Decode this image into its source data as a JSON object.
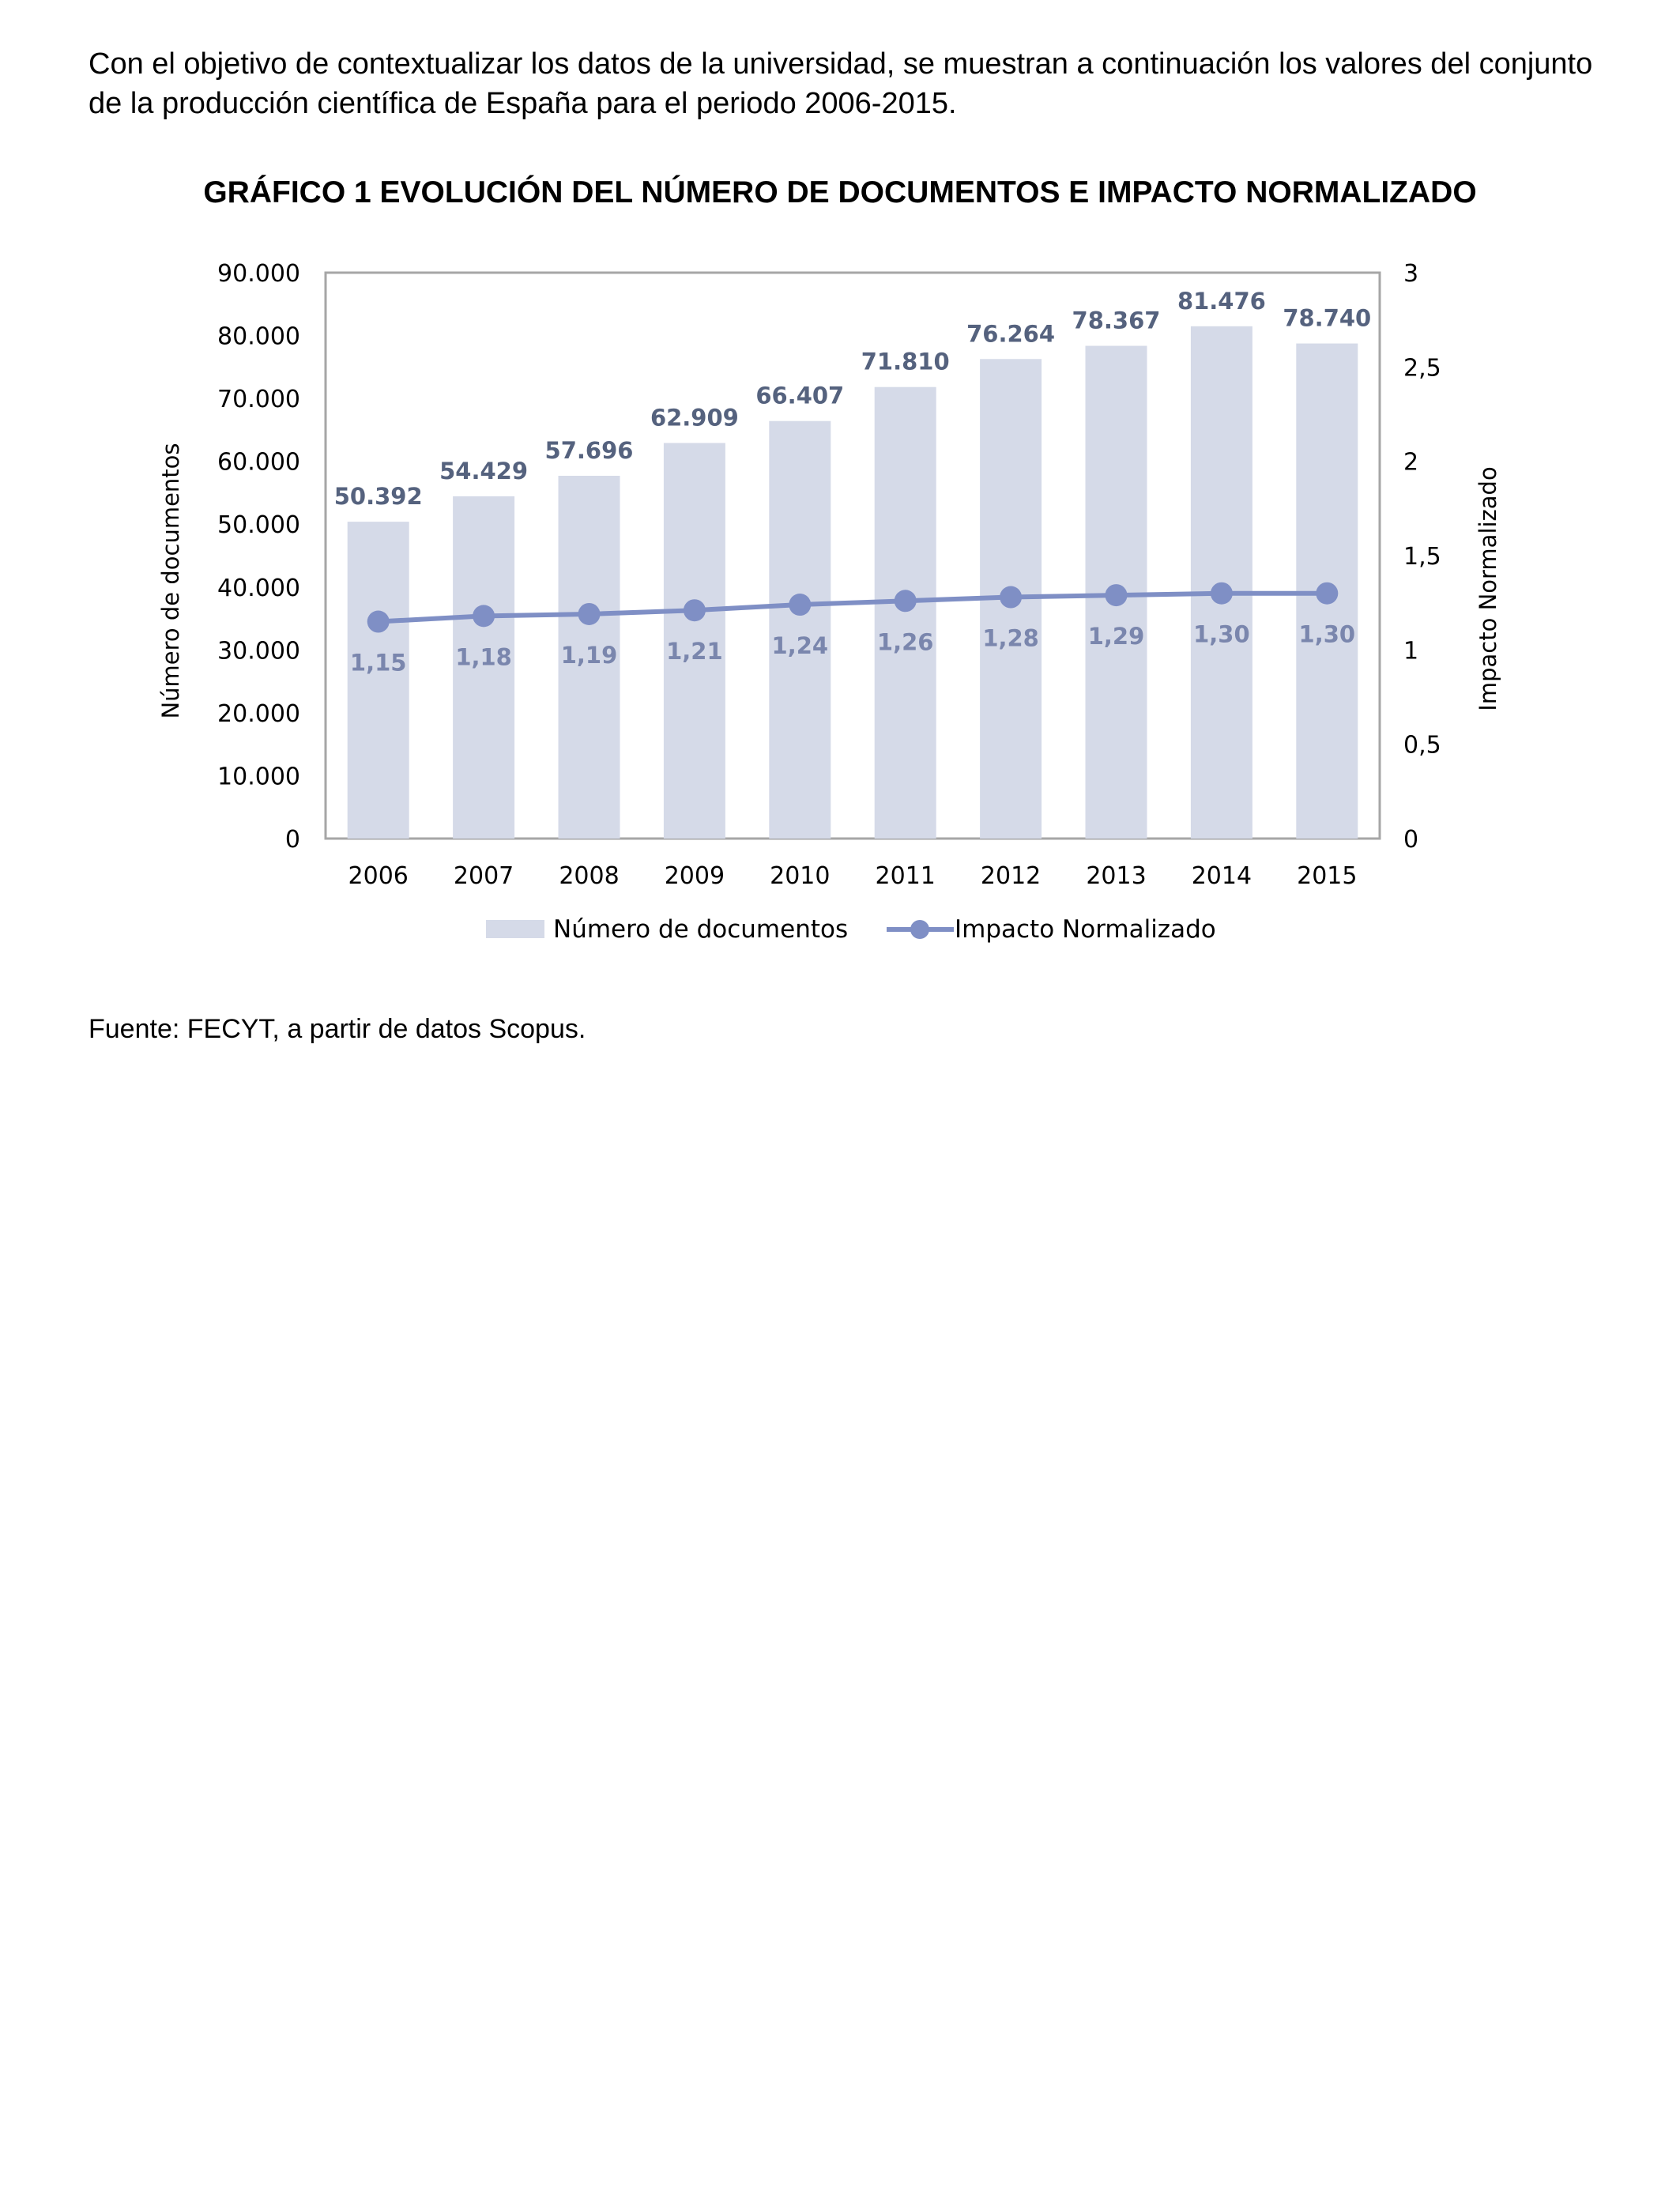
{
  "intro_text": "Con el objetivo de contextualizar los datos de la universidad, se muestran a continuación los valores del conjunto de la producción científica de España para el periodo 2006-2015.",
  "chart_heading": "GRÁFICO 1 EVOLUCIÓN DEL NÚMERO DE DOCUMENTOS E IMPACTO NORMALIZADO",
  "source_text": "Fuente: FECYT, a partir de datos Scopus.",
  "colors": {
    "bars": "#d5dae8",
    "line": "#7f8fc5",
    "bar_labels": "#55627e",
    "line_labels": "#7a86ad",
    "frame": "#a6a6a6"
  },
  "chart_data": {
    "type": "bar",
    "categories": [
      "2006",
      "2007",
      "2008",
      "2009",
      "2010",
      "2011",
      "2012",
      "2013",
      "2014",
      "2015"
    ],
    "series": [
      {
        "name": "Número de documentos",
        "type": "bar",
        "axis": "left",
        "values": [
          50392,
          54429,
          57696,
          62909,
          66407,
          71810,
          76264,
          78367,
          81476,
          78740
        ],
        "labels": [
          "50.392",
          "54.429",
          "57.696",
          "62.909",
          "66.407",
          "71.810",
          "76.264",
          "78.367",
          "81.476",
          "78.740"
        ]
      },
      {
        "name": "Impacto Normalizado",
        "type": "line",
        "axis": "right",
        "values": [
          1.15,
          1.18,
          1.19,
          1.21,
          1.24,
          1.26,
          1.28,
          1.29,
          1.3,
          1.3
        ],
        "labels": [
          "1,15",
          "1,18",
          "1,19",
          "1,21",
          "1,24",
          "1,26",
          "1,28",
          "1,29",
          "1,30",
          "1,30"
        ]
      }
    ],
    "ylabel": "Número de documentos",
    "y2label": "Impacto Normalizado",
    "ylim": [
      0,
      90000
    ],
    "y2lim": [
      0,
      3
    ],
    "yticks": [
      "0",
      "10.000",
      "20.000",
      "30.000",
      "40.000",
      "50.000",
      "60.000",
      "70.000",
      "80.000",
      "90.000"
    ],
    "y2ticks": [
      "0",
      "0,5",
      "1",
      "1,5",
      "2",
      "2,5",
      "3"
    ],
    "legend_position": "bottom",
    "grid": false
  }
}
